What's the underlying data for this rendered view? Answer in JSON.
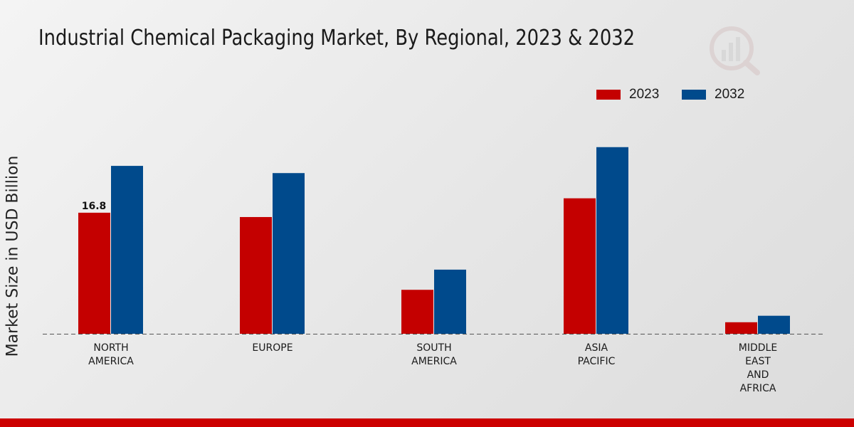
{
  "chart_data": {
    "type": "bar",
    "title": "Industrial Chemical Packaging Market, By Regional, 2023 & 2032",
    "xlabel": "",
    "ylabel": "Market Size in USD Billion",
    "ylim": [
      0,
      40
    ],
    "grid": false,
    "legend_position": "top-right",
    "categories": [
      [
        "NORTH",
        "AMERICA"
      ],
      [
        "EUROPE"
      ],
      [
        "SOUTH",
        "AMERICA"
      ],
      [
        "ASIA",
        "PACIFIC"
      ],
      [
        "MIDDLE",
        "EAST",
        "AND",
        "AFRICA"
      ]
    ],
    "series": [
      {
        "name": "2023",
        "color": "#c40000",
        "values": [
          16.8,
          16.2,
          6.1,
          18.8,
          1.6
        ]
      },
      {
        "name": "2032",
        "color": "#004a8c",
        "values": [
          23.3,
          22.3,
          8.9,
          25.9,
          2.5
        ]
      }
    ],
    "annotations": [
      {
        "series": 0,
        "index": 0,
        "text": "16.8"
      }
    ]
  },
  "colors": {
    "footer": "#cc0000",
    "baseline": "#555555"
  }
}
